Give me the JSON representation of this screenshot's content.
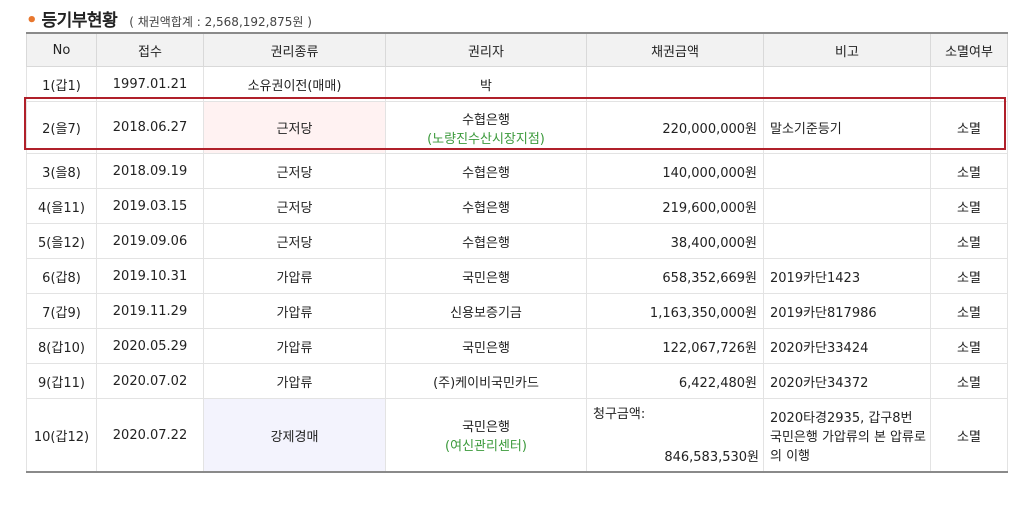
{
  "header": {
    "bullet": "•",
    "title": "등기부현황",
    "subtitle": "( 채권액합계 : 2,568,192,875원 )"
  },
  "columns": [
    "No",
    "접수",
    "권리종류",
    "권리자",
    "채권금액",
    "비고",
    "소멸여부"
  ],
  "rows": [
    {
      "no": "1(갑1)",
      "date": "1997.01.21",
      "type": "소유권이전(매매)",
      "holder": "박",
      "holder_sub": "",
      "amount": "",
      "note": "",
      "extinct": ""
    },
    {
      "no": "2(을7)",
      "date": "2018.06.27",
      "type": "근저당",
      "holder": "수협은행",
      "holder_sub": "(노량진수산시장지점)",
      "amount": "220,000,000원",
      "note": "말소기준등기",
      "extinct": "소멸"
    },
    {
      "no": "3(을8)",
      "date": "2018.09.19",
      "type": "근저당",
      "holder": "수협은행",
      "holder_sub": "",
      "amount": "140,000,000원",
      "note": "",
      "extinct": "소멸"
    },
    {
      "no": "4(을11)",
      "date": "2019.03.15",
      "type": "근저당",
      "holder": "수협은행",
      "holder_sub": "",
      "amount": "219,600,000원",
      "note": "",
      "extinct": "소멸"
    },
    {
      "no": "5(을12)",
      "date": "2019.09.06",
      "type": "근저당",
      "holder": "수협은행",
      "holder_sub": "",
      "amount": "38,400,000원",
      "note": "",
      "extinct": "소멸"
    },
    {
      "no": "6(갑8)",
      "date": "2019.10.31",
      "type": "가압류",
      "holder": "국민은행",
      "holder_sub": "",
      "amount": "658,352,669원",
      "note": "2019카단1423",
      "extinct": "소멸"
    },
    {
      "no": "7(갑9)",
      "date": "2019.11.29",
      "type": "가압류",
      "holder": "신용보증기금",
      "holder_sub": "",
      "amount": "1,163,350,000원",
      "note": "2019카단817986",
      "extinct": "소멸"
    },
    {
      "no": "8(갑10)",
      "date": "2020.05.29",
      "type": "가압류",
      "holder": "국민은행",
      "holder_sub": "",
      "amount": "122,067,726원",
      "note": "2020카단33424",
      "extinct": "소멸"
    },
    {
      "no": "9(갑11)",
      "date": "2020.07.02",
      "type": "가압류",
      "holder": "(주)케이비국민카드",
      "holder_sub": "",
      "amount": "6,422,480원",
      "note": "2020카단34372",
      "extinct": "소멸"
    }
  ],
  "last_row": {
    "no": "10(갑12)",
    "date": "2020.07.22",
    "type": "강제경매",
    "holder": "국민은행",
    "holder_sub": "(여신관리센터)",
    "amount_label": "청구금액:",
    "amount": "846,583,530원",
    "note": "2020타경2935, 갑구8번 국민은행 가압류의 본 압류로의 이행",
    "extinct": "소멸"
  }
}
